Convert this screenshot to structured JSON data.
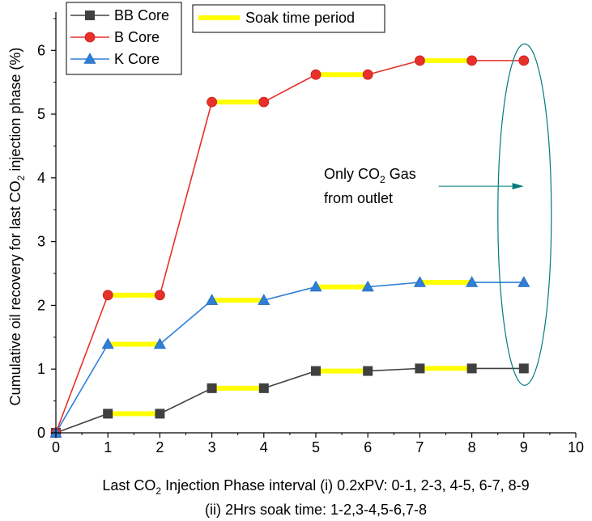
{
  "chart_data": {
    "type": "line",
    "xlabel": {
      "line1_prefix": "Last CO",
      "line1_sub": "2",
      "line1_suffix": " Injection Phase interval (i) 0.2xPV: 0-1, 2-3, 4-5, 6-7, 8-9",
      "line2": "(ii) 2Hrs soak time: 1-2,3-4,5-6,7-8"
    },
    "ylabel": {
      "prefix": "Cumulative oil recovery for last CO",
      "sub": "2",
      "suffix": " injection phase (%)"
    },
    "xlim": [
      0,
      10
    ],
    "ylim": [
      0,
      6.6
    ],
    "x_ticks": [
      "0",
      "1",
      "2",
      "3",
      "4",
      "5",
      "6",
      "7",
      "8",
      "9",
      "10"
    ],
    "y_ticks": [
      "0",
      "1",
      "2",
      "3",
      "4",
      "5",
      "6"
    ],
    "x": [
      0,
      1,
      2,
      3,
      4,
      5,
      6,
      7,
      8,
      9
    ],
    "series": [
      {
        "name": "BB Core",
        "color": "#404040",
        "marker": "square",
        "values": [
          0,
          0.3,
          0.3,
          0.7,
          0.7,
          0.97,
          0.97,
          1.01,
          1.01,
          1.01
        ]
      },
      {
        "name": "B Core",
        "color": "#e8302a",
        "marker": "circle",
        "values": [
          0,
          2.16,
          2.16,
          5.19,
          5.19,
          5.62,
          5.62,
          5.84,
          5.84,
          5.84
        ]
      },
      {
        "name": "K Core",
        "color": "#2f7ed8",
        "marker": "triangle",
        "values": [
          0,
          1.39,
          1.39,
          2.08,
          2.08,
          2.29,
          2.29,
          2.36,
          2.36,
          2.36
        ]
      }
    ],
    "soak_periods": [
      [
        1,
        2
      ],
      [
        3,
        4
      ],
      [
        5,
        6
      ],
      [
        7,
        8
      ]
    ],
    "soak_legend": {
      "label": "Soak time period",
      "color": "#ffff00"
    },
    "annotation": {
      "line1_prefix": "Only CO",
      "line1_sub": "2",
      "line1_suffix": " Gas",
      "line2": "from outlet",
      "ellipse_color": "#007b7b",
      "ellipse_center_x": 9,
      "ellipse_center_y": 3.5,
      "arrow_from": [
        7.3,
        3.78
      ],
      "arrow_to": [
        8.0,
        3.78
      ]
    }
  }
}
